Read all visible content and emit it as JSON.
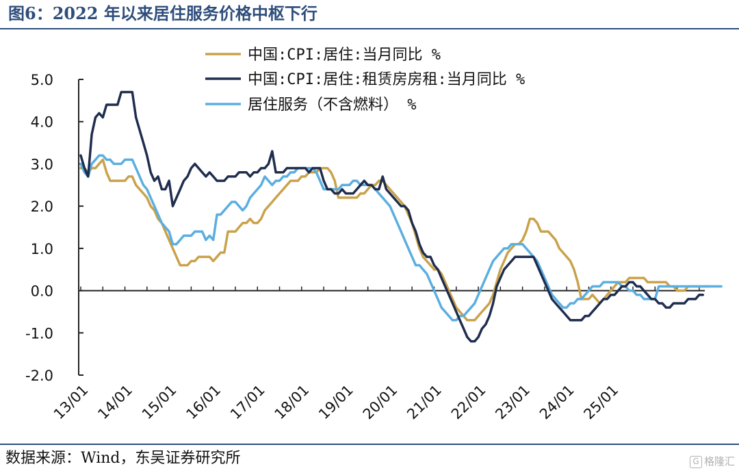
{
  "title": "图6：2022 年以来居住服务价格中枢下行",
  "source": "数据来源：Wind，东吴证券研究所",
  "watermark": {
    "icon": "G",
    "text": "格隆汇"
  },
  "chart_data": {
    "type": "line",
    "ylim": [
      -2.0,
      5.0
    ],
    "yticks": [
      "5.0",
      "4.0",
      "3.0",
      "2.0",
      "1.0",
      "0.0",
      "-1.0",
      "-2.0"
    ],
    "ytick_values": [
      5,
      4,
      3,
      2,
      1,
      0,
      -1,
      -2
    ],
    "xticks": [
      "13/01",
      "14/01",
      "15/01",
      "16/01",
      "17/01",
      "18/01",
      "19/01",
      "20/01",
      "21/01",
      "22/01",
      "23/01",
      "24/01",
      "25/01"
    ],
    "x_start": "2013-01",
    "x_end": "2025-08",
    "legend_position": "top",
    "grid": false,
    "series": [
      {
        "name": "中国:CPI:居住:当月同比 %",
        "color": "#c9a24a",
        "values": [
          2.9,
          2.9,
          2.8,
          2.9,
          2.9,
          3.0,
          3.1,
          2.8,
          2.6,
          2.6,
          2.6,
          2.6,
          2.6,
          2.7,
          2.7,
          2.5,
          2.4,
          2.3,
          2.2,
          2.0,
          1.9,
          1.7,
          1.6,
          1.4,
          1.2,
          1.0,
          0.8,
          0.6,
          0.6,
          0.6,
          0.7,
          0.7,
          0.8,
          0.8,
          0.8,
          0.8,
          0.7,
          0.8,
          0.9,
          0.9,
          1.4,
          1.4,
          1.4,
          1.5,
          1.6,
          1.6,
          1.7,
          1.6,
          1.6,
          1.7,
          1.9,
          2.0,
          2.1,
          2.2,
          2.3,
          2.4,
          2.5,
          2.6,
          2.6,
          2.6,
          2.7,
          2.7,
          2.8,
          2.8,
          2.8,
          2.9,
          2.9,
          2.9,
          2.8,
          2.6,
          2.2,
          2.2,
          2.2,
          2.2,
          2.2,
          2.2,
          2.3,
          2.3,
          2.4,
          2.5,
          2.5,
          2.6,
          2.6,
          2.5,
          2.4,
          2.3,
          2.2,
          2.1,
          2.0,
          1.8,
          1.6,
          1.3,
          1.0,
          0.8,
          0.7,
          0.6,
          0.5,
          0.5,
          0.4,
          0.2,
          0.0,
          -0.2,
          -0.4,
          -0.5,
          -0.6,
          -0.7,
          -0.7,
          -0.7,
          -0.6,
          -0.5,
          -0.4,
          -0.3,
          -0.1,
          0.2,
          0.5,
          0.7,
          0.9,
          1.0,
          1.1,
          1.1,
          1.2,
          1.4,
          1.7,
          1.7,
          1.6,
          1.4,
          1.4,
          1.4,
          1.3,
          1.2,
          1.0,
          0.9,
          0.8,
          0.7,
          0.5,
          0.2,
          -0.2,
          -0.2,
          -0.2,
          -0.1,
          -0.2,
          -0.3,
          -0.2,
          -0.1,
          0.0,
          0.1,
          0.2,
          0.2,
          0.2,
          0.3,
          0.3,
          0.3,
          0.3,
          0.3,
          0.2,
          0.2,
          0.2,
          0.2,
          0.2,
          0.2,
          0.1,
          0.1,
          0.0,
          0.0,
          0.0,
          0.1,
          0.1,
          0.1,
          0.1,
          0.1,
          0.1,
          0.1
        ]
      },
      {
        "name": "中国:CPI:居住:租赁房房租:当月同比 %",
        "color": "#1f2d4e",
        "values": [
          3.2,
          2.9,
          2.7,
          3.7,
          4.1,
          4.2,
          4.1,
          4.4,
          4.4,
          4.4,
          4.4,
          4.7,
          4.7,
          4.7,
          4.7,
          4.1,
          3.8,
          3.5,
          3.2,
          2.8,
          2.6,
          2.7,
          2.4,
          2.4,
          2.6,
          2.0,
          2.2,
          2.4,
          2.6,
          2.7,
          2.9,
          3.0,
          2.9,
          2.8,
          2.7,
          2.8,
          2.7,
          2.6,
          2.6,
          2.6,
          2.7,
          2.7,
          2.7,
          2.8,
          2.8,
          2.8,
          2.7,
          2.8,
          2.8,
          2.9,
          2.9,
          3.0,
          3.3,
          2.8,
          2.8,
          2.8,
          2.9,
          2.9,
          2.9,
          2.9,
          2.9,
          2.9,
          2.8,
          2.9,
          2.9,
          2.9,
          2.6,
          2.4,
          2.4,
          2.3,
          2.3,
          2.4,
          2.3,
          2.3,
          2.3,
          2.4,
          2.5,
          2.6,
          2.5,
          2.5,
          2.4,
          2.4,
          2.7,
          2.4,
          2.3,
          2.2,
          2.1,
          2.0,
          2.0,
          1.9,
          1.6,
          1.4,
          1.1,
          0.9,
          0.8,
          0.8,
          0.6,
          0.5,
          0.3,
          0.1,
          -0.1,
          -0.3,
          -0.5,
          -0.7,
          -0.9,
          -1.1,
          -1.2,
          -1.2,
          -1.1,
          -0.9,
          -0.8,
          -0.6,
          -0.3,
          0.1,
          0.3,
          0.5,
          0.6,
          0.7,
          0.8,
          0.8,
          0.8,
          0.8,
          0.8,
          0.8,
          0.6,
          0.4,
          0.2,
          0.0,
          -0.2,
          -0.3,
          -0.4,
          -0.5,
          -0.6,
          -0.7,
          -0.7,
          -0.7,
          -0.7,
          -0.6,
          -0.6,
          -0.5,
          -0.4,
          -0.3,
          -0.2,
          -0.2,
          -0.1,
          -0.1,
          0.0,
          0.1,
          0.1,
          0.2,
          0.2,
          0.1,
          0.1,
          0.0,
          -0.1,
          -0.2,
          -0.2,
          -0.3,
          -0.3,
          -0.4,
          -0.4,
          -0.3,
          -0.3,
          -0.3,
          -0.3,
          -0.2,
          -0.2,
          -0.2,
          -0.1,
          -0.1
        ]
      },
      {
        "name": "居住服务（不含燃料） %",
        "color": "#5aaee0",
        "values": [
          3.0,
          2.8,
          2.7,
          3.0,
          3.1,
          3.2,
          3.2,
          3.1,
          3.1,
          3.0,
          3.0,
          3.0,
          3.1,
          3.1,
          3.1,
          2.9,
          2.7,
          2.5,
          2.4,
          2.2,
          2.0,
          1.8,
          1.6,
          1.5,
          1.4,
          1.1,
          1.1,
          1.2,
          1.3,
          1.3,
          1.3,
          1.4,
          1.4,
          1.4,
          1.2,
          1.3,
          1.2,
          1.8,
          1.8,
          1.9,
          2.0,
          2.1,
          2.1,
          2.0,
          1.9,
          2.0,
          2.2,
          2.3,
          2.4,
          2.5,
          2.7,
          2.6,
          2.5,
          2.6,
          2.6,
          2.7,
          2.7,
          2.8,
          2.8,
          2.9,
          2.9,
          2.9,
          2.9,
          2.9,
          2.8,
          2.6,
          2.4,
          2.4,
          2.4,
          2.4,
          2.4,
          2.5,
          2.5,
          2.5,
          2.6,
          2.6,
          2.5,
          2.5,
          2.5,
          2.5,
          2.4,
          2.3,
          2.2,
          2.1,
          2.0,
          1.8,
          1.6,
          1.4,
          1.2,
          1.0,
          0.8,
          0.6,
          0.6,
          0.5,
          0.4,
          0.2,
          0.0,
          -0.2,
          -0.4,
          -0.5,
          -0.6,
          -0.7,
          -0.7,
          -0.6,
          -0.6,
          -0.5,
          -0.4,
          -0.3,
          -0.1,
          0.1,
          0.3,
          0.5,
          0.7,
          0.8,
          0.9,
          1.0,
          1.0,
          1.1,
          1.1,
          1.1,
          1.1,
          1.0,
          0.9,
          0.8,
          0.7,
          0.5,
          0.3,
          0.1,
          -0.1,
          -0.2,
          -0.3,
          -0.4,
          -0.4,
          -0.3,
          -0.3,
          -0.2,
          -0.2,
          -0.1,
          0.0,
          0.1,
          0.1,
          0.1,
          0.2,
          0.2,
          0.2,
          0.2,
          0.2,
          0.1,
          0.1,
          0.0,
          0.0,
          -0.1,
          -0.1,
          -0.2,
          -0.2,
          -0.2,
          -0.2,
          0.1,
          0.1,
          0.1,
          0.1,
          0.1,
          0.1,
          0.1,
          0.1,
          0.1,
          0.1,
          0.1,
          0.1,
          0.1,
          0.1,
          0.1,
          0.1,
          0.1,
          0.1
        ]
      }
    ]
  }
}
